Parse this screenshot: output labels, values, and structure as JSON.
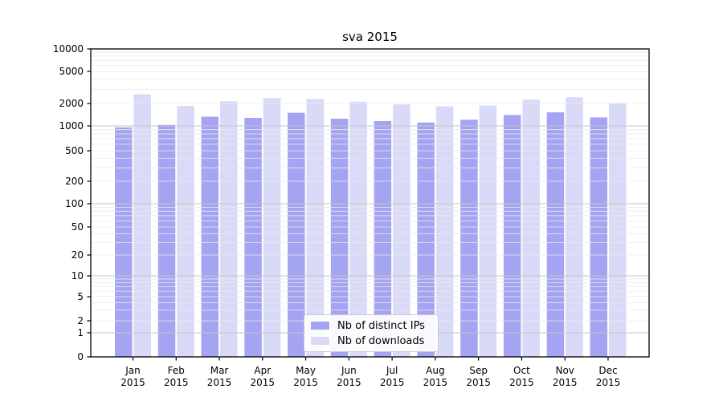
{
  "chart_data": {
    "type": "bar",
    "title": "sva 2015",
    "x_tick_months": [
      "Jan",
      "Feb",
      "Mar",
      "Apr",
      "May",
      "Jun",
      "Jul",
      "Aug",
      "Sep",
      "Oct",
      "Nov",
      "Dec"
    ],
    "x_tick_year": "2015",
    "series": [
      {
        "name": "Nb of distinct IPs",
        "color": "#a4a4f2",
        "values": [
          960,
          1030,
          1330,
          1280,
          1500,
          1250,
          1160,
          1110,
          1210,
          1400,
          1520,
          1300
        ]
      },
      {
        "name": "Nb of downloads",
        "color": "#d9d9f8",
        "values": [
          2600,
          1850,
          2130,
          2340,
          2270,
          2100,
          1940,
          1830,
          1870,
          2230,
          2390,
          2030
        ]
      }
    ],
    "y_axis": {
      "scale": "symlog",
      "range": [
        0,
        10000
      ],
      "ticks": [
        10000,
        5000,
        2000,
        1000,
        500,
        200,
        100,
        50,
        20,
        10,
        5,
        2,
        1,
        0
      ]
    },
    "grid": {
      "horizontal": true,
      "minor_log_lines": true
    },
    "legend": {
      "position": "lower-center-inside"
    }
  },
  "colors": {
    "bar_dark": "#a4a4f2",
    "bar_light": "#d9d9f8",
    "grid_minor": "#ebebeb",
    "grid_major": "#c6c6c6",
    "spine": "#000000",
    "text": "#000000"
  }
}
